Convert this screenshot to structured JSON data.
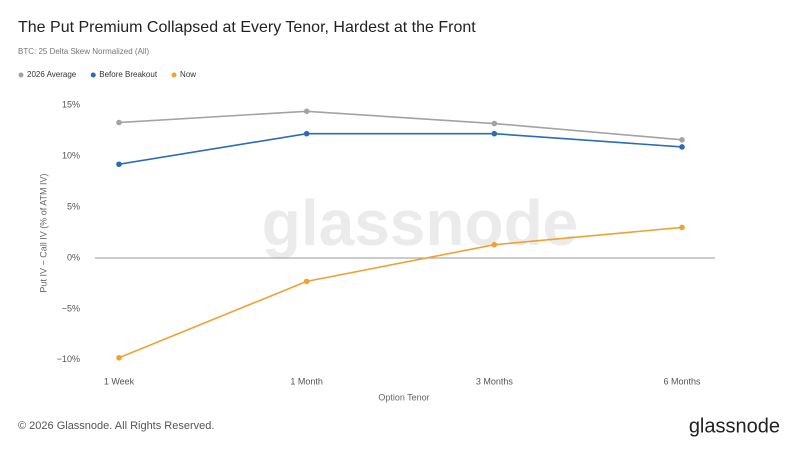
{
  "chart_data": {
    "type": "line",
    "title": "The Put Premium Collapsed at Every Tenor, Hardest at the Front",
    "subtitle": "BTC: 25 Delta Skew Normalized (All)",
    "x_label": "Option Tenor",
    "y_label": "Put IV − Call IV (% of ATM IV)",
    "categories": [
      "1 Week",
      "1 Month",
      "3 Months",
      "6 Months"
    ],
    "series": [
      {
        "name": "2026 Average",
        "color": "#a3a3a3",
        "values": [
          13.3,
          14.4,
          13.2,
          11.6
        ]
      },
      {
        "name": "Before Breakout",
        "color": "#2b6cb8",
        "values": [
          9.2,
          12.2,
          12.2,
          10.9
        ]
      },
      {
        "name": "Now",
        "color": "#eea234",
        "values": [
          -9.8,
          -2.3,
          1.3,
          3.0
        ]
      }
    ],
    "ylim": [
      -11,
      16
    ],
    "yticks": [
      {
        "value": 15,
        "label": "15%"
      },
      {
        "value": 10,
        "label": "10%"
      },
      {
        "value": 5,
        "label": "5%"
      },
      {
        "value": 0,
        "label": "0%"
      },
      {
        "value": -5,
        "label": "−5%"
      },
      {
        "value": -10,
        "label": "−10%"
      }
    ],
    "grid": false,
    "zero_line": true,
    "legend_position": "top-left",
    "watermark": "glassnode",
    "footer": "© 2026 Glassnode. All Rights Reserved.",
    "logo": "glassnode"
  }
}
